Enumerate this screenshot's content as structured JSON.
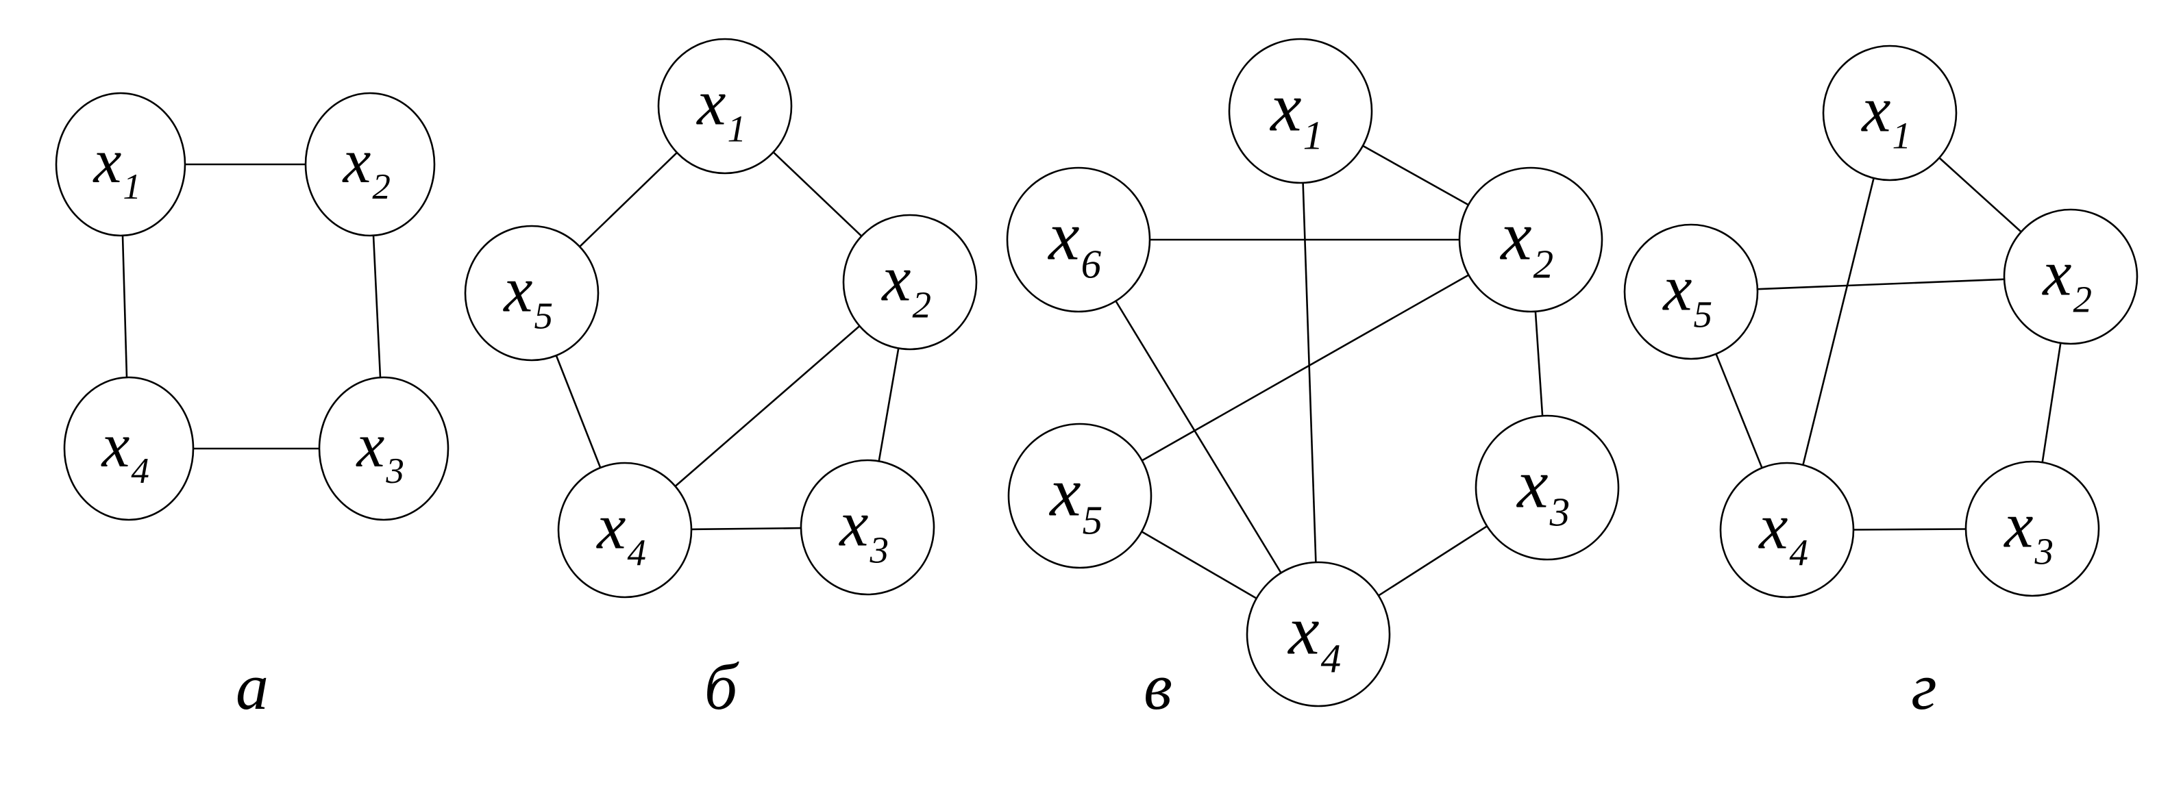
{
  "panels": [
    {
      "label": "а",
      "nodes": [
        {
          "id": "x1",
          "base": "x",
          "sub": "1"
        },
        {
          "id": "x2",
          "base": "x",
          "sub": "2"
        },
        {
          "id": "x3",
          "base": "x",
          "sub": "3"
        },
        {
          "id": "x4",
          "base": "x",
          "sub": "4"
        }
      ],
      "edges": [
        [
          "x1",
          "x2"
        ],
        [
          "x1",
          "x4"
        ],
        [
          "x2",
          "x3"
        ],
        [
          "x4",
          "x3"
        ]
      ]
    },
    {
      "label": "б",
      "nodes": [
        {
          "id": "x1",
          "base": "x",
          "sub": "1"
        },
        {
          "id": "x2",
          "base": "x",
          "sub": "2"
        },
        {
          "id": "x3",
          "base": "x",
          "sub": "3"
        },
        {
          "id": "x4",
          "base": "x",
          "sub": "4"
        },
        {
          "id": "x5",
          "base": "x",
          "sub": "5"
        }
      ],
      "edges": [
        [
          "x1",
          "x5"
        ],
        [
          "x1",
          "x2"
        ],
        [
          "x5",
          "x4"
        ],
        [
          "x2",
          "x4"
        ],
        [
          "x2",
          "x3"
        ],
        [
          "x4",
          "x3"
        ]
      ]
    },
    {
      "label": "в",
      "nodes": [
        {
          "id": "x1",
          "base": "x",
          "sub": "1"
        },
        {
          "id": "x2",
          "base": "x",
          "sub": "2"
        },
        {
          "id": "x3",
          "base": "x",
          "sub": "3"
        },
        {
          "id": "x4",
          "base": "x",
          "sub": "4"
        },
        {
          "id": "x5",
          "base": "x",
          "sub": "5"
        },
        {
          "id": "x6",
          "base": "x",
          "sub": "6"
        }
      ],
      "edges": [
        [
          "x1",
          "x2"
        ],
        [
          "x1",
          "x4"
        ],
        [
          "x6",
          "x2"
        ],
        [
          "x6",
          "x4"
        ],
        [
          "x2",
          "x5"
        ],
        [
          "x2",
          "x3"
        ],
        [
          "x5",
          "x4"
        ],
        [
          "x3",
          "x4"
        ]
      ]
    },
    {
      "label": "г",
      "nodes": [
        {
          "id": "x1",
          "base": "x",
          "sub": "1"
        },
        {
          "id": "x2",
          "base": "x",
          "sub": "2"
        },
        {
          "id": "x3",
          "base": "x",
          "sub": "3"
        },
        {
          "id": "x4",
          "base": "x",
          "sub": "4"
        },
        {
          "id": "x5",
          "base": "x",
          "sub": "5"
        }
      ],
      "edges": [
        [
          "x1",
          "x2"
        ],
        [
          "x1",
          "x4"
        ],
        [
          "x5",
          "x2"
        ],
        [
          "x5",
          "x4"
        ],
        [
          "x2",
          "x3"
        ],
        [
          "x4",
          "x3"
        ]
      ]
    }
  ]
}
